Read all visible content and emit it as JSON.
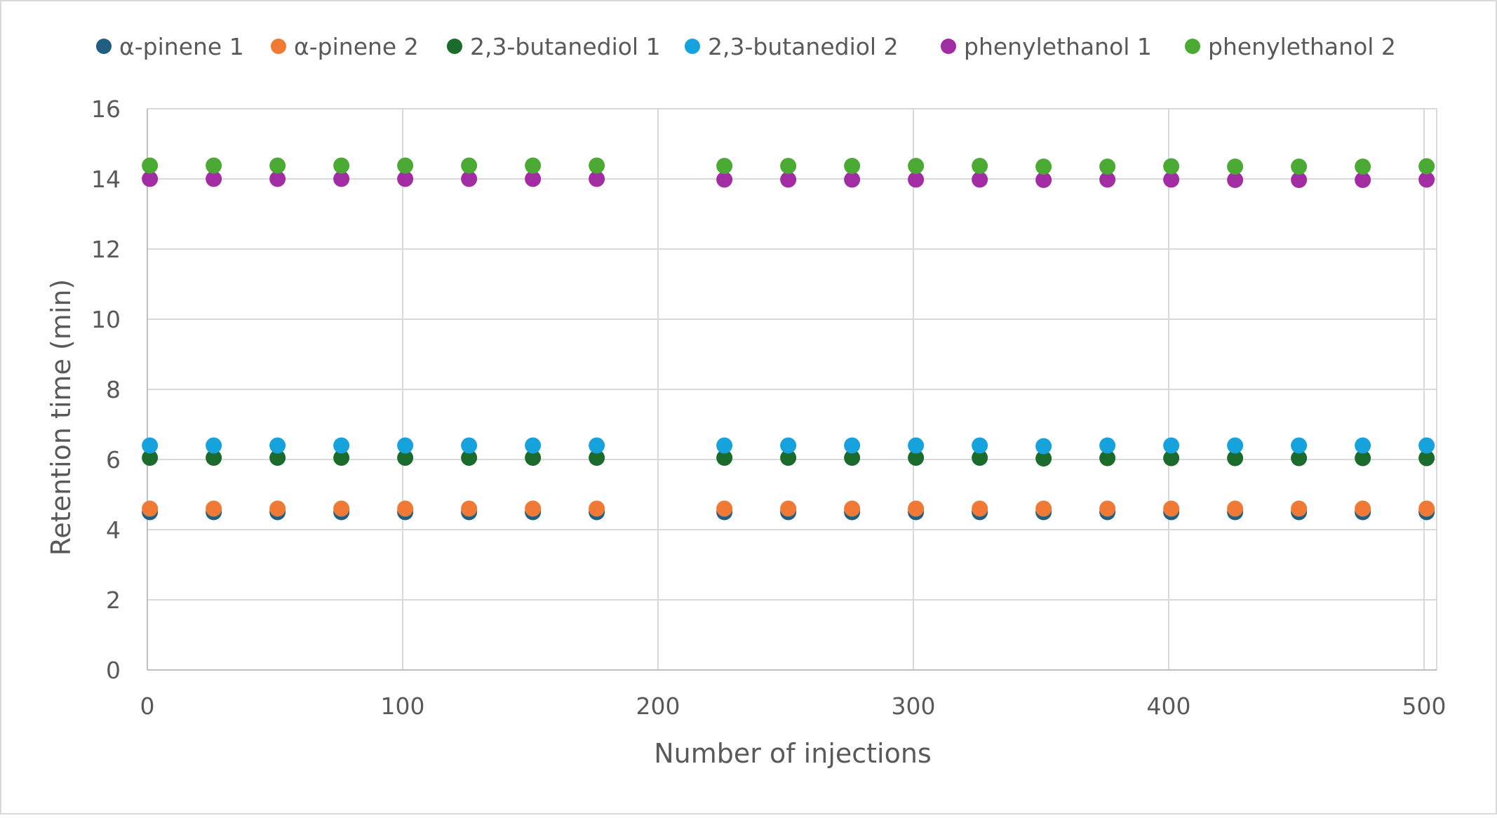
{
  "chart_data": {
    "type": "scatter",
    "title": "",
    "xlabel": "Number of injections",
    "ylabel": "Retention time (min)",
    "xlim": [
      0,
      505
    ],
    "ylim": [
      0,
      16
    ],
    "x_ticks": [
      0,
      100,
      200,
      300,
      400,
      500
    ],
    "y_ticks": [
      0,
      2,
      4,
      6,
      8,
      10,
      12,
      14,
      16
    ],
    "x_tick_labels": [
      "0",
      "100",
      "200",
      "300",
      "400",
      "500"
    ],
    "y_tick_labels": [
      "0",
      "2",
      "4",
      "6",
      "8",
      "10",
      "12",
      "14",
      "16"
    ],
    "grid": true,
    "legend_position": "top",
    "x": [
      1,
      26,
      51,
      76,
      101,
      126,
      151,
      176,
      226,
      251,
      276,
      301,
      326,
      351,
      376,
      401,
      426,
      451,
      476,
      501
    ],
    "series": [
      {
        "name": "α-pinene 1",
        "color": "#1f5f82",
        "values": [
          4.5,
          4.5,
          4.5,
          4.5,
          4.5,
          4.5,
          4.5,
          4.5,
          4.5,
          4.5,
          4.5,
          4.5,
          4.5,
          4.5,
          4.5,
          4.5,
          4.5,
          4.5,
          4.5,
          4.5
        ]
      },
      {
        "name": "α-pinene 2",
        "color": "#f07a35",
        "values": [
          4.6,
          4.6,
          4.6,
          4.6,
          4.6,
          4.6,
          4.6,
          4.6,
          4.6,
          4.6,
          4.6,
          4.6,
          4.6,
          4.6,
          4.6,
          4.6,
          4.6,
          4.6,
          4.6,
          4.6
        ]
      },
      {
        "name": "2,3-butanediol 1",
        "color": "#1a6b2c",
        "values": [
          6.05,
          6.05,
          6.05,
          6.05,
          6.05,
          6.05,
          6.05,
          6.05,
          6.05,
          6.05,
          6.05,
          6.05,
          6.05,
          6.03,
          6.04,
          6.04,
          6.04,
          6.04,
          6.04,
          6.04
        ]
      },
      {
        "name": "2,3-butanediol 2",
        "color": "#16a3dd",
        "values": [
          6.4,
          6.4,
          6.4,
          6.4,
          6.4,
          6.4,
          6.4,
          6.4,
          6.4,
          6.4,
          6.4,
          6.4,
          6.4,
          6.38,
          6.4,
          6.4,
          6.4,
          6.4,
          6.4,
          6.4
        ]
      },
      {
        "name": "phenylethanol 1",
        "color": "#a22da3",
        "values": [
          14.0,
          14.0,
          14.0,
          14.0,
          14.0,
          14.0,
          14.0,
          14.0,
          13.98,
          13.98,
          13.98,
          13.98,
          13.98,
          13.97,
          13.98,
          13.98,
          13.97,
          13.97,
          13.97,
          13.98
        ]
      },
      {
        "name": "phenylethanol 2",
        "color": "#4aaa33",
        "values": [
          14.38,
          14.38,
          14.38,
          14.38,
          14.38,
          14.38,
          14.38,
          14.38,
          14.37,
          14.37,
          14.37,
          14.37,
          14.37,
          14.35,
          14.35,
          14.36,
          14.35,
          14.35,
          14.35,
          14.36
        ]
      }
    ]
  }
}
